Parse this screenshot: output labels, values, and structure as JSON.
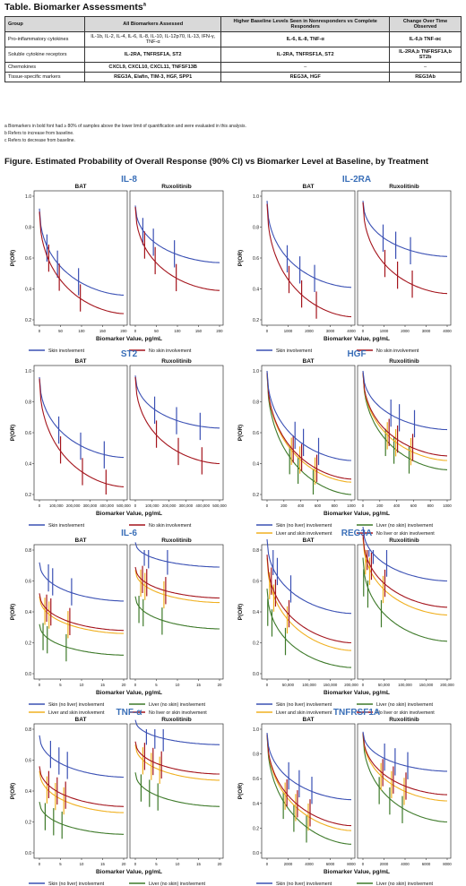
{
  "table": {
    "title": "Table. Biomarker Assessments",
    "title_sup": "a",
    "headers": [
      "Group",
      "All Biomarkers Assessed",
      "Higher Baseline Levels Seen in Nonresponders vs Complete Responders",
      "Change Over Time Observed"
    ],
    "rows": [
      {
        "group": "Pro-inflammatory cytokines",
        "all": "IL-1b, IL-2, IL-4, IL-6, IL-8, IL-10, IL-12p70, IL-13, IFN-γ, TNF-α",
        "higher": "IL-6, IL-8, TNF-α",
        "change": "IL-6,b TNF-αc"
      },
      {
        "group": "Soluble cytokine receptors",
        "all": "IL-2RA, TNFRSF1A, ST2",
        "higher": "IL-2RA, TNFRSF1A, ST2",
        "change": "IL-2RA,b TNFRSF1A,b ST2b"
      },
      {
        "group": "Chemokines",
        "all": "CXCL9, CXCL10, CXCL11, TNFSF13B",
        "higher": "–",
        "change": "–"
      },
      {
        "group": "Tissue-specific markers",
        "all": "REG3A, Elafin, TIM-3, HGF, SPP1",
        "higher": "REG3A, HGF",
        "change": "REG3Ab"
      }
    ],
    "footnotes": [
      "a Biomarkers in bold font had ≥ 80% of samples above the lower limit of quantification and were evaluated in this analysis.",
      "b Refers to increase from baseline.",
      "c Refers to decrease from baseline."
    ]
  },
  "figure": {
    "title": "Figure. Estimated Probability of Overall Response (90% CI) vs Biomarker Level at Baseline, by Treatment",
    "panel_titles": [
      "BAT",
      "Ruxolitinib"
    ],
    "ylabel": "P(OR)",
    "xlabel": "Biomarker Value, pg/mL",
    "colors": {
      "blue": "#3a50b4",
      "red": "#a4141c",
      "green": "#3e7a2a",
      "yellow": "#f0b020"
    },
    "legend_labels": {
      "skin": "Skin involvement",
      "noskin": "No skin involvement",
      "skin_noliver": "Skin (no liver) involvement",
      "liver_noskin": "Liver (no skin) involvement",
      "liver_skin": "Liver and skin involvement",
      "none": "No liver or skin involvement"
    }
  },
  "chart_data": [
    {
      "type": "line",
      "title": "IL-8",
      "xlim": [
        0,
        200
      ],
      "xticks": [
        "0",
        "50",
        "100",
        "150",
        "200"
      ],
      "ylim": [
        0.2,
        1.0
      ],
      "yticks": [
        "0.2",
        "0.4",
        "0.6",
        "0.8",
        "1.0"
      ],
      "groups": "two",
      "bat": {
        "skin": {
          "start": 0.92,
          "end": 0.36
        },
        "noskin": {
          "start": 0.9,
          "end": 0.24
        }
      },
      "rux": {
        "skin": {
          "start": 0.94,
          "end": 0.57
        },
        "noskin": {
          "start": 0.93,
          "end": 0.39
        }
      },
      "errorbars_x": [
        20,
        45,
        95
      ]
    },
    {
      "type": "line",
      "title": "IL-2RA",
      "xlim": [
        0,
        4000
      ],
      "xticks": [
        "0",
        "1000",
        "2000",
        "3000",
        "4000"
      ],
      "ylim": [
        0.2,
        1.0
      ],
      "yticks": [
        "0.2",
        "0.4",
        "0.6",
        "0.8",
        "1.0"
      ],
      "groups": "two",
      "bat": {
        "skin": {
          "start": 0.97,
          "end": 0.41
        },
        "noskin": {
          "start": 0.95,
          "end": 0.22
        }
      },
      "rux": {
        "skin": {
          "start": 0.97,
          "end": 0.61
        },
        "noskin": {
          "start": 0.96,
          "end": 0.37
        }
      },
      "errorbars_x": [
        1000,
        1600,
        2300
      ]
    },
    {
      "type": "line",
      "title": "ST2",
      "xlim": [
        0,
        500000
      ],
      "xticks": [
        "0",
        "100,000",
        "200,000",
        "300,000",
        "400,000",
        "500,000"
      ],
      "ylim": [
        0.2,
        1.0
      ],
      "yticks": [
        "0.2",
        "0.4",
        "0.6",
        "0.8",
        "1.0"
      ],
      "groups": "two",
      "bat": {
        "skin": {
          "start": 0.96,
          "end": 0.44
        },
        "noskin": {
          "start": 0.95,
          "end": 0.25
        }
      },
      "rux": {
        "skin": {
          "start": 0.97,
          "end": 0.63
        },
        "noskin": {
          "start": 0.96,
          "end": 0.4
        }
      },
      "errorbars_x": [
        120000,
        250000,
        390000
      ]
    },
    {
      "type": "line",
      "title": "HGF",
      "xlim": [
        0,
        1000
      ],
      "xticks": [
        "0",
        "200",
        "400",
        "600",
        "800",
        "1000"
      ],
      "ylim": [
        0.2,
        1.0
      ],
      "yticks": [
        "0.2",
        "0.4",
        "0.6",
        "0.8",
        "1.0"
      ],
      "groups": "four",
      "bat": {
        "skin_noliver": {
          "start": 1.0,
          "end": 0.42
        },
        "liver_noskin": {
          "start": 0.98,
          "end": 0.2
        },
        "liver_skin": {
          "start": 0.99,
          "end": 0.28
        },
        "none": {
          "start": 0.99,
          "end": 0.3
        }
      },
      "rux": {
        "skin_noliver": {
          "start": 1.0,
          "end": 0.62
        },
        "liver_noskin": {
          "start": 0.99,
          "end": 0.36
        },
        "liver_skin": {
          "start": 0.99,
          "end": 0.42
        },
        "none": {
          "start": 0.99,
          "end": 0.45
        }
      },
      "errorbars_x": [
        300,
        400,
        580
      ]
    },
    {
      "type": "line",
      "title": "IL-6",
      "xlim": [
        0,
        20
      ],
      "xticks": [
        "0",
        "5",
        "10",
        "15",
        "20"
      ],
      "ylim": [
        0.0,
        0.8
      ],
      "yticks": [
        "0.0",
        "0.2",
        "0.4",
        "0.6",
        "0.8"
      ],
      "groups": "four",
      "bat": {
        "skin_noliver": {
          "start": 0.72,
          "end": 0.47
        },
        "liver_noskin": {
          "start": 0.32,
          "end": 0.12
        },
        "liver_skin": {
          "start": 0.5,
          "end": 0.26
        },
        "none": {
          "start": 0.52,
          "end": 0.28
        }
      },
      "rux": {
        "skin_noliver": {
          "start": 0.85,
          "end": 0.69
        },
        "liver_noskin": {
          "start": 0.5,
          "end": 0.29
        },
        "liver_skin": {
          "start": 0.67,
          "end": 0.46
        },
        "none": {
          "start": 0.69,
          "end": 0.49
        }
      },
      "errorbars_x": [
        1.5,
        2.5,
        7
      ]
    },
    {
      "type": "line",
      "title": "REG3A",
      "xlim": [
        0,
        200000
      ],
      "xticks": [
        "0",
        "50,000",
        "100,000",
        "150,000",
        "200,000"
      ],
      "ylim": [
        0.0,
        0.8
      ],
      "yticks": [
        "0.0",
        "0.2",
        "0.4",
        "0.6",
        "0.8"
      ],
      "groups": "four",
      "bat": {
        "skin_noliver": {
          "start": 0.87,
          "end": 0.39
        },
        "liver_noskin": {
          "start": 0.55,
          "end": 0.04
        },
        "liver_skin": {
          "start": 0.75,
          "end": 0.15
        },
        "none": {
          "start": 0.77,
          "end": 0.2
        }
      },
      "rux": {
        "skin_noliver": {
          "start": 0.95,
          "end": 0.6
        },
        "liver_noskin": {
          "start": 0.75,
          "end": 0.21
        },
        "liver_skin": {
          "start": 0.88,
          "end": 0.38
        },
        "none": {
          "start": 0.9,
          "end": 0.43
        }
      },
      "errorbars_x": [
        8000,
        18000,
        50000
      ]
    },
    {
      "type": "line",
      "title": "TNF-α",
      "xlim": [
        0,
        20
      ],
      "xticks": [
        "0",
        "5",
        "10",
        "15",
        "20"
      ],
      "ylim": [
        0.0,
        0.8
      ],
      "yticks": [
        "0.0",
        "0.2",
        "0.4",
        "0.6",
        "0.8"
      ],
      "groups": "four",
      "bat": {
        "skin_noliver": {
          "start": 0.76,
          "end": 0.49
        },
        "liver_noskin": {
          "start": 0.33,
          "end": 0.12
        },
        "liver_skin": {
          "start": 0.53,
          "end": 0.26
        },
        "none": {
          "start": 0.56,
          "end": 0.3
        }
      },
      "rux": {
        "skin_noliver": {
          "start": 0.86,
          "end": 0.7
        },
        "liver_noskin": {
          "start": 0.52,
          "end": 0.3
        },
        "liver_skin": {
          "start": 0.7,
          "end": 0.47
        },
        "none": {
          "start": 0.72,
          "end": 0.51
        }
      },
      "errorbars_x": [
        2,
        4,
        6
      ]
    },
    {
      "type": "line",
      "title": "TNFRSF1A",
      "xlim": [
        0,
        8000
      ],
      "xticks": [
        "0",
        "2000",
        "4000",
        "6000",
        "8000"
      ],
      "ylim": [
        0.0,
        1.0
      ],
      "yticks": [
        "0.0",
        "0.2",
        "0.4",
        "0.6",
        "0.8",
        "1.0"
      ],
      "groups": "four",
      "bat": {
        "skin_noliver": {
          "start": 0.97,
          "end": 0.43
        },
        "liver_noskin": {
          "start": 0.95,
          "end": 0.07
        },
        "liver_skin": {
          "start": 0.96,
          "end": 0.18
        },
        "none": {
          "start": 0.96,
          "end": 0.22
        }
      },
      "rux": {
        "skin_noliver": {
          "start": 0.98,
          "end": 0.66
        },
        "liver_noskin": {
          "start": 0.96,
          "end": 0.25
        },
        "liver_skin": {
          "start": 0.97,
          "end": 0.42
        },
        "none": {
          "start": 0.97,
          "end": 0.47
        }
      },
      "errorbars_x": [
        1800,
        2800,
        4000
      ]
    }
  ]
}
